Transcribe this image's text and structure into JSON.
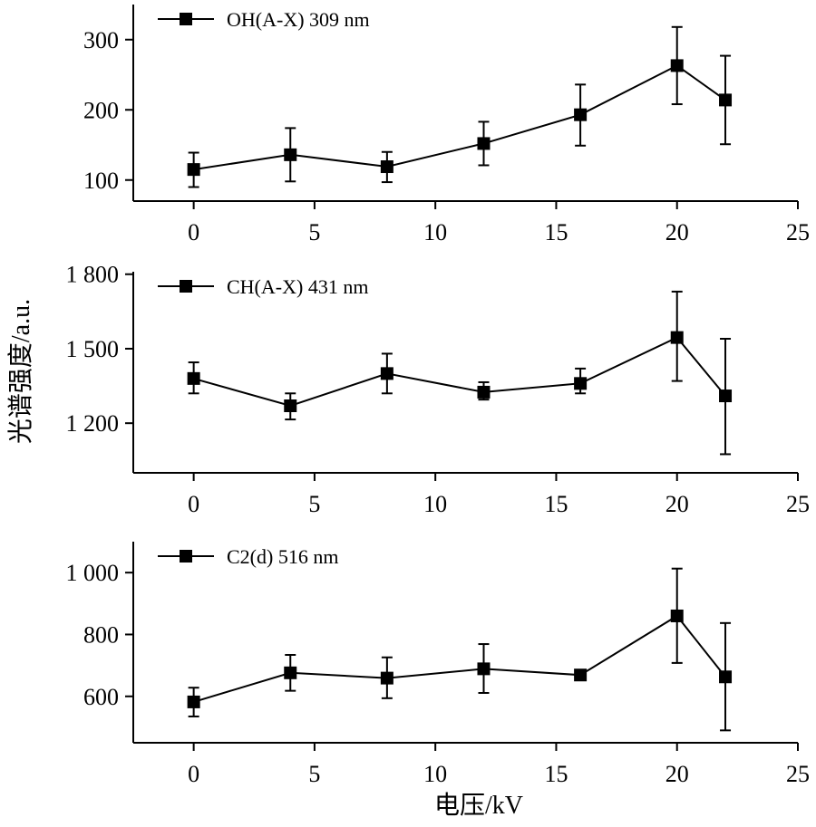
{
  "figure": {
    "ylabel": "光谱强度/a.u.",
    "xlabel": "电压/kV"
  },
  "chart_data": [
    {
      "type": "line",
      "legend": "top-left",
      "grid": false,
      "xlim": [
        -2.5,
        25
      ],
      "ylim": [
        70,
        350
      ],
      "xticks": [
        0,
        5,
        10,
        15,
        20,
        25
      ],
      "xtick_labels": [
        "0",
        "5",
        "10",
        "15",
        "20",
        "25"
      ],
      "yticks": [
        100,
        200,
        300
      ],
      "ytick_labels": [
        "100",
        "200",
        "300"
      ],
      "series": [
        {
          "name": "OH(A-X) 309 nm",
          "x": [
            0,
            4,
            8,
            12,
            16,
            20,
            22
          ],
          "y": [
            115,
            136,
            119,
            152,
            193,
            263,
            214
          ],
          "err_low": [
            90,
            98,
            97,
            121,
            149,
            208,
            151
          ],
          "err_high": [
            139,
            174,
            140,
            183,
            236,
            318,
            277
          ]
        }
      ]
    },
    {
      "type": "line",
      "legend": "top-left",
      "grid": false,
      "xlim": [
        -2.5,
        25
      ],
      "ylim": [
        1000,
        1810
      ],
      "xticks": [
        0,
        5,
        10,
        15,
        20,
        25
      ],
      "xtick_labels": [
        "0",
        "5",
        "10",
        "15",
        "20",
        "25"
      ],
      "yticks": [
        1200,
        1500,
        1800
      ],
      "ytick_labels": [
        "1 200",
        "1 500",
        "1 800"
      ],
      "series": [
        {
          "name": "CH(A-X) 431 nm",
          "x": [
            0,
            4,
            8,
            12,
            16,
            20,
            22
          ],
          "y": [
            1380,
            1270,
            1400,
            1325,
            1360,
            1545,
            1310
          ],
          "err_low": [
            1320,
            1215,
            1320,
            1295,
            1320,
            1370,
            1075
          ],
          "err_high": [
            1445,
            1320,
            1480,
            1365,
            1420,
            1730,
            1540
          ]
        }
      ]
    },
    {
      "type": "line",
      "legend": "top-left",
      "grid": false,
      "xlim": [
        -2.5,
        25
      ],
      "ylim": [
        450,
        1100
      ],
      "xticks": [
        0,
        5,
        10,
        15,
        20,
        25
      ],
      "xtick_labels": [
        "0",
        "5",
        "10",
        "15",
        "20",
        "25"
      ],
      "yticks": [
        600,
        800,
        1000
      ],
      "ytick_labels": [
        "600",
        "800",
        "1 000"
      ],
      "series": [
        {
          "name": "C2(d) 516 nm",
          "x": [
            0,
            4,
            8,
            12,
            16,
            20,
            22
          ],
          "y": [
            582,
            676,
            659,
            689,
            669,
            860,
            663
          ],
          "err_low": [
            535,
            618,
            594,
            611,
            669,
            708,
            490
          ],
          "err_high": [
            628,
            734,
            726,
            769,
            669,
            1013,
            837
          ]
        }
      ]
    }
  ]
}
